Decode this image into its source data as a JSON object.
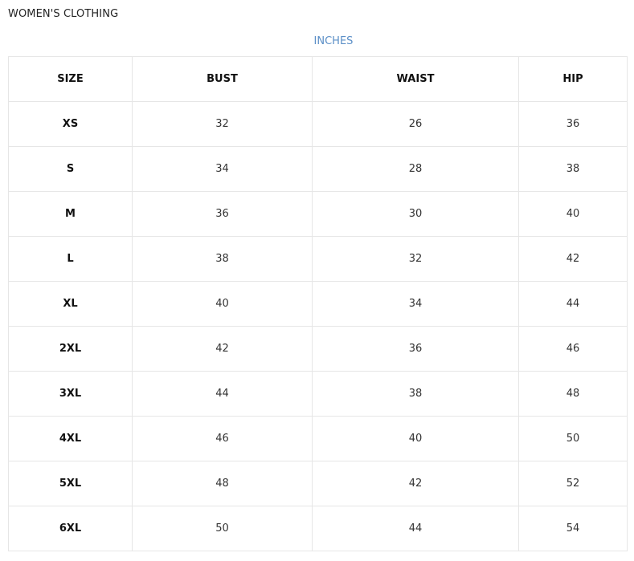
{
  "title": "WOMEN'S CLOTHING",
  "unit_label": "INCHES",
  "colors": {
    "unit_label": "#5b8fc7",
    "border": "#e6e6e6"
  },
  "table": {
    "headers": [
      "SIZE",
      "BUST",
      "WAIST",
      "HIP"
    ],
    "rows": [
      [
        "XS",
        "32",
        "26",
        "36"
      ],
      [
        "S",
        "34",
        "28",
        "38"
      ],
      [
        "M",
        "36",
        "30",
        "40"
      ],
      [
        "L",
        "38",
        "32",
        "42"
      ],
      [
        "XL",
        "40",
        "34",
        "44"
      ],
      [
        "2XL",
        "42",
        "36",
        "46"
      ],
      [
        "3XL",
        "44",
        "38",
        "48"
      ],
      [
        "4XL",
        "46",
        "40",
        "50"
      ],
      [
        "5XL",
        "48",
        "42",
        "52"
      ],
      [
        "6XL",
        "50",
        "44",
        "54"
      ]
    ]
  }
}
